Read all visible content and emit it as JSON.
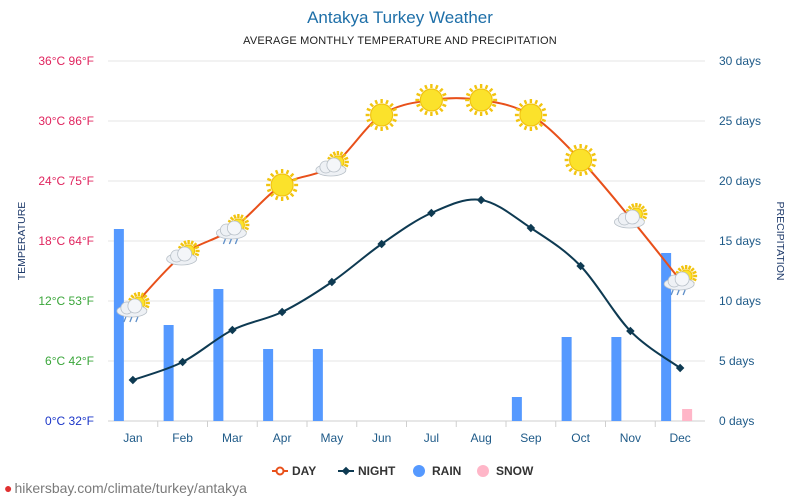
{
  "title": "Antakya Turkey Weather",
  "subtitle": "AVERAGE MONTHLY TEMPERATURE AND PRECIPITATION",
  "footer": "hikersbay.com/climate/turkey/antakya",
  "colors": {
    "day": "#e8501a",
    "night": "#0e3a52",
    "rain": "#5599ff",
    "snow": "#ffb6c8",
    "grid": "#e6e6e6",
    "right_axis": "#1e5a88"
  },
  "chart_data": {
    "type": "line",
    "categories": [
      "Jan",
      "Feb",
      "Mar",
      "Apr",
      "May",
      "Jun",
      "Jul",
      "Aug",
      "Sep",
      "Oct",
      "Nov",
      "Dec"
    ],
    "left_axis": {
      "label": "TEMPERATURE",
      "ylim": [
        0,
        36
      ],
      "ticks": [
        {
          "value": 0,
          "label": "0°C 32°F",
          "color": "#1a35c8"
        },
        {
          "value": 6,
          "label": "6°C 42°F",
          "color": "#3aa63a"
        },
        {
          "value": 12,
          "label": "12°C 53°F",
          "color": "#3aa63a"
        },
        {
          "value": 18,
          "label": "18°C 64°F",
          "color": "#e0245e"
        },
        {
          "value": 24,
          "label": "24°C 75°F",
          "color": "#e0245e"
        },
        {
          "value": 30,
          "label": "30°C 86°F",
          "color": "#e0245e"
        },
        {
          "value": 36,
          "label": "36°C 96°F",
          "color": "#e0245e"
        }
      ]
    },
    "right_axis": {
      "label": "PRECIPITATION",
      "ylim": [
        0,
        30
      ],
      "ticks": [
        {
          "value": 0,
          "label": "0 days"
        },
        {
          "value": 5,
          "label": "5 days"
        },
        {
          "value": 10,
          "label": "10 days"
        },
        {
          "value": 15,
          "label": "15 days"
        },
        {
          "value": 20,
          "label": "20 days"
        },
        {
          "value": 25,
          "label": "25 days"
        },
        {
          "value": 30,
          "label": "30 days"
        }
      ]
    },
    "series": [
      {
        "name": "DAY",
        "kind": "line",
        "axis": "left",
        "values": [
          11.4,
          16.6,
          19.2,
          23.6,
          25.5,
          30.6,
          32.1,
          32.1,
          30.6,
          26.1,
          20.3,
          14.1
        ],
        "icons": [
          "sun-cloud-rain",
          "sun-cloud",
          "sun-cloud-rain",
          "sun",
          "sun-cloud",
          "sun",
          "sun",
          "sun",
          "sun",
          "sun",
          "sun-cloud",
          "sun-cloud-rain"
        ]
      },
      {
        "name": "NIGHT",
        "kind": "line",
        "axis": "left",
        "values": [
          4.1,
          5.9,
          9.1,
          10.9,
          13.9,
          17.7,
          20.8,
          22.1,
          19.3,
          15.5,
          9.0,
          5.3
        ]
      },
      {
        "name": "RAIN",
        "kind": "bar",
        "axis": "right",
        "values": [
          16,
          8,
          11,
          6,
          6,
          0,
          0,
          0,
          2,
          7,
          7,
          14
        ]
      },
      {
        "name": "SNOW",
        "kind": "bar",
        "axis": "right",
        "values": [
          0,
          0,
          0,
          0,
          0,
          0,
          0,
          0,
          0,
          0,
          0,
          1
        ]
      }
    ],
    "legend": [
      {
        "name": "DAY",
        "marker": "line-circle"
      },
      {
        "name": "NIGHT",
        "marker": "line-diamond"
      },
      {
        "name": "RAIN",
        "marker": "circle"
      },
      {
        "name": "SNOW",
        "marker": "circle"
      }
    ],
    "legend_position": "bottom",
    "grid": true
  }
}
